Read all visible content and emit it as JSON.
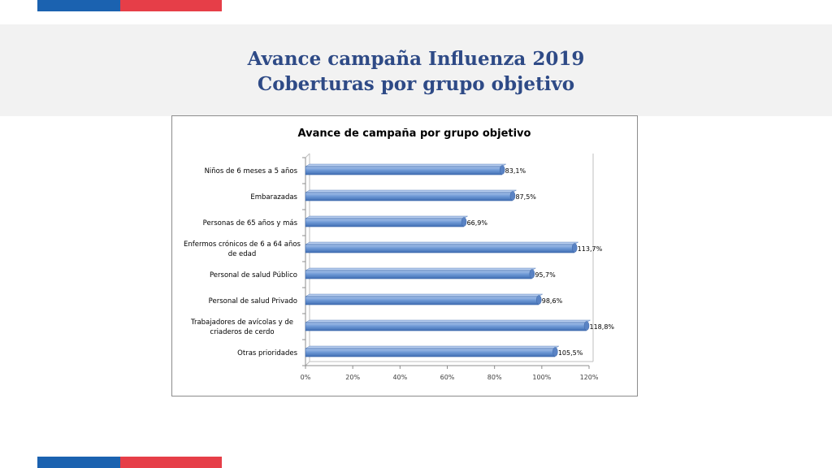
{
  "slide": {
    "title_line1": "Avance campaña Influenza 2019",
    "title_line2": "Coberturas por grupo objetivo"
  },
  "colors": {
    "brand_blue": "#1b62b0",
    "brand_red": "#e63e48",
    "title_text": "#2e4a86",
    "bar_fill": "#6f9ad6",
    "bar_edge": "#3d67a8"
  },
  "chart_data": {
    "type": "bar",
    "orientation": "horizontal",
    "title": "Avance de campaña por grupo objetivo",
    "categories": [
      "Niños de 6 meses a 5 años",
      "Embarazadas",
      "Personas de 65 años y más",
      "Enfermos crónicos de 6 a 64 años de edad",
      "Personal de salud Público",
      "Personal de salud Privado",
      "Trabajadores de avícolas y de criaderos de cerdo",
      "Otras prioridades"
    ],
    "category_lines": [
      [
        "Niños de 6 meses a 5 años"
      ],
      [
        "Embarazadas"
      ],
      [
        "Personas de 65 años y más"
      ],
      [
        "Enfermos crónicos de 6 a 64 años",
        "de edad"
      ],
      [
        "Personal de salud Público"
      ],
      [
        "Personal de salud Privado"
      ],
      [
        "Trabajadores de avícolas y de",
        "criaderos de cerdo"
      ],
      [
        "Otras prioridades"
      ]
    ],
    "values": [
      83.1,
      87.5,
      66.9,
      113.7,
      95.7,
      98.6,
      118.8,
      105.5
    ],
    "data_labels": [
      "83,1%",
      "87,5%",
      "66,9%",
      "113,7%",
      "95,7%",
      "98,6%",
      "118,8%",
      "105,5%"
    ],
    "xlim": [
      0,
      120
    ],
    "x_ticks": [
      "0%",
      "20%",
      "40%",
      "60%",
      "80%",
      "100%",
      "120%"
    ],
    "grid": false,
    "legend": "none"
  }
}
